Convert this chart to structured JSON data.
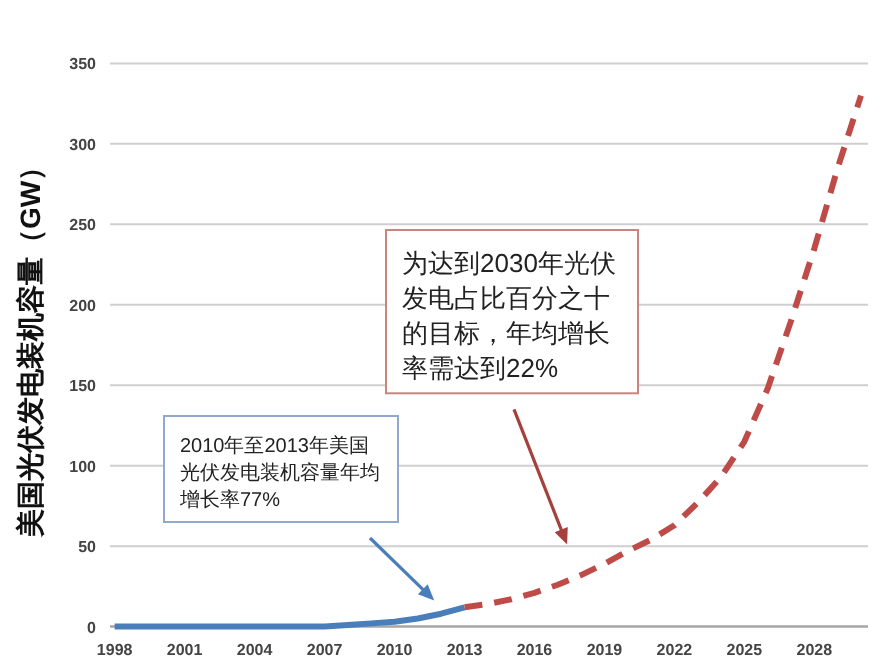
{
  "chart_data": {
    "type": "line",
    "ylabel": "美国光伏发电装机容量（GW）",
    "xlim": [
      1997.8,
      2030.3
    ],
    "xticks": [
      1998,
      2001,
      2004,
      2007,
      2010,
      2013,
      2016,
      2019,
      2022,
      2025,
      2028
    ],
    "ylim": [
      0,
      350
    ],
    "yticks": [
      0,
      50,
      100,
      150,
      200,
      250,
      300,
      350
    ],
    "grid": "y",
    "series": [
      {
        "color": "#4a7ebb",
        "line_style": "solid",
        "x": [
          1998,
          1999,
          2000,
          2001,
          2002,
          2003,
          2004,
          2005,
          2006,
          2007,
          2008,
          2009,
          2010,
          2011,
          2012,
          2013
        ],
        "values": [
          0,
          0,
          0,
          0,
          0,
          0,
          0,
          0,
          0,
          0,
          1,
          2,
          3,
          5,
          8,
          12
        ]
      },
      {
        "color": "#be4b48",
        "line_style": "dashed",
        "x": [
          2013,
          2014,
          2015,
          2016,
          2017,
          2018,
          2019,
          2020,
          2021,
          2022,
          2023,
          2024,
          2025,
          2026,
          2027,
          2028,
          2029,
          2030
        ],
        "values": [
          12,
          14,
          17,
          21,
          26,
          32,
          39,
          47,
          54,
          63,
          77,
          93,
          115,
          148,
          190,
          235,
          285,
          330
        ]
      }
    ],
    "annotations": [
      "2010年至2013年美国光伏发电装机容量年均增长率77%",
      "为达到2030年光伏发电占比百分之十的目标，年均增长率需达到22%"
    ]
  }
}
